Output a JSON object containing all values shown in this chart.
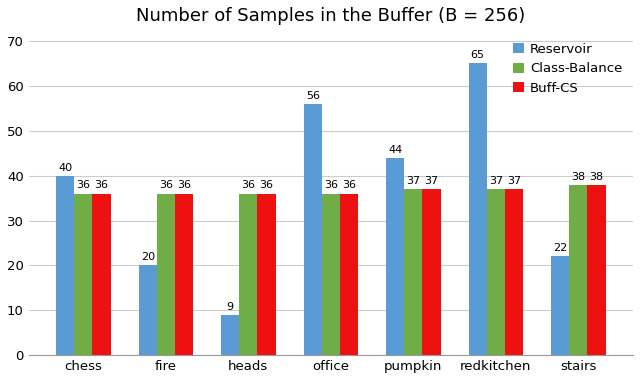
{
  "title": "Number of Samples in the Buffer (B = 256)",
  "categories": [
    "chess",
    "fire",
    "heads",
    "office",
    "pumpkin",
    "redkitchen",
    "stairs"
  ],
  "series": {
    "Reservoir": [
      40,
      20,
      9,
      56,
      44,
      65,
      22
    ],
    "Class-Balance": [
      36,
      36,
      36,
      36,
      37,
      37,
      38
    ],
    "Buff-CS": [
      36,
      36,
      36,
      36,
      37,
      37,
      38
    ]
  },
  "colors": {
    "Reservoir": "#5B9BD5",
    "Class-Balance": "#70AD47",
    "Buff-CS": "#EE1111"
  },
  "ylim": [
    0,
    72
  ],
  "yticks": [
    0,
    10,
    20,
    30,
    40,
    50,
    60,
    70
  ],
  "ylabel": "",
  "xlabel": "",
  "bar_width": 0.22,
  "label_fontsize": 8.0,
  "title_fontsize": 13,
  "tick_fontsize": 9.5,
  "legend_fontsize": 9.5,
  "background_color": "#FFFFFF",
  "grid_color": "#CCCCCC"
}
